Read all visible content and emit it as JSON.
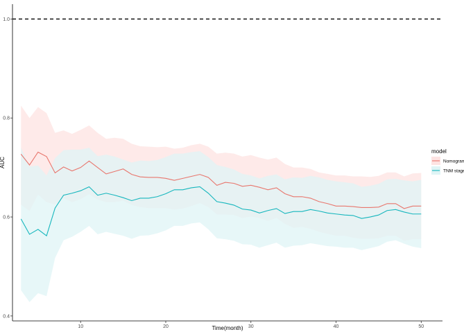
{
  "chart_data": {
    "type": "line",
    "xlabel": "Time(month)",
    "ylabel": "AUC",
    "xlim": [
      2,
      52.5
    ],
    "ylim": [
      0.39,
      1.03
    ],
    "xticks": [
      10,
      20,
      30,
      40,
      50
    ],
    "yticks": [
      0.4,
      0.6,
      0.8,
      1.0
    ],
    "ytick_labels": [
      "0.4",
      "0.6",
      "0.8",
      "1.0"
    ],
    "grid": false,
    "reference_line": {
      "y": 1.0,
      "style": "dashed",
      "color": "#000000"
    },
    "legend": {
      "title": "model",
      "position": "right"
    },
    "x": [
      3,
      4,
      5,
      6,
      7,
      8,
      9,
      10,
      11,
      12,
      13,
      14,
      15,
      16,
      17,
      18,
      19,
      20,
      21,
      22,
      23,
      24,
      25,
      26,
      27,
      28,
      29,
      30,
      31,
      32,
      33,
      34,
      35,
      36,
      37,
      38,
      39,
      40,
      41,
      42,
      43,
      44,
      45,
      46,
      47,
      48,
      49,
      50
    ],
    "series": [
      {
        "name": "Nomogram",
        "color": "#e8766d",
        "fill": "#fde3e2",
        "values": [
          0.727,
          0.705,
          0.731,
          0.722,
          0.689,
          0.701,
          0.693,
          0.7,
          0.713,
          0.7,
          0.687,
          0.692,
          0.697,
          0.686,
          0.681,
          0.68,
          0.68,
          0.678,
          0.674,
          0.678,
          0.682,
          0.686,
          0.68,
          0.664,
          0.67,
          0.668,
          0.662,
          0.664,
          0.66,
          0.655,
          0.659,
          0.647,
          0.641,
          0.641,
          0.638,
          0.631,
          0.627,
          0.622,
          0.622,
          0.621,
          0.619,
          0.619,
          0.62,
          0.627,
          0.627,
          0.617,
          0.622,
          0.622
        ],
        "lower": [
          0.625,
          0.612,
          0.645,
          0.63,
          0.625,
          0.638,
          0.63,
          0.636,
          0.646,
          0.635,
          0.63,
          0.63,
          0.633,
          0.624,
          0.62,
          0.618,
          0.618,
          0.618,
          0.615,
          0.617,
          0.622,
          0.628,
          0.62,
          0.605,
          0.605,
          0.604,
          0.598,
          0.601,
          0.598,
          0.592,
          0.598,
          0.586,
          0.578,
          0.58,
          0.576,
          0.57,
          0.566,
          0.562,
          0.562,
          0.558,
          0.556,
          0.556,
          0.557,
          0.562,
          0.562,
          0.552,
          0.555,
          0.555
        ],
        "upper": [
          0.825,
          0.8,
          0.822,
          0.81,
          0.77,
          0.775,
          0.768,
          0.776,
          0.785,
          0.77,
          0.758,
          0.76,
          0.758,
          0.748,
          0.743,
          0.742,
          0.741,
          0.742,
          0.738,
          0.74,
          0.745,
          0.748,
          0.742,
          0.728,
          0.73,
          0.728,
          0.722,
          0.725,
          0.72,
          0.716,
          0.72,
          0.707,
          0.7,
          0.7,
          0.697,
          0.69,
          0.687,
          0.684,
          0.684,
          0.682,
          0.682,
          0.681,
          0.683,
          0.69,
          0.69,
          0.682,
          0.688,
          0.689
        ]
      },
      {
        "name": "TNM stage",
        "color": "#15b6bd",
        "fill": "#dff4f5",
        "values": [
          0.596,
          0.565,
          0.575,
          0.562,
          0.618,
          0.644,
          0.648,
          0.653,
          0.661,
          0.644,
          0.648,
          0.644,
          0.639,
          0.633,
          0.638,
          0.638,
          0.641,
          0.647,
          0.655,
          0.655,
          0.659,
          0.661,
          0.648,
          0.631,
          0.628,
          0.624,
          0.616,
          0.614,
          0.608,
          0.613,
          0.617,
          0.607,
          0.611,
          0.611,
          0.615,
          0.612,
          0.608,
          0.606,
          0.604,
          0.603,
          0.597,
          0.6,
          0.604,
          0.613,
          0.615,
          0.61,
          0.606,
          0.606
        ],
        "lower": [
          0.452,
          0.428,
          0.446,
          0.44,
          0.517,
          0.553,
          0.56,
          0.57,
          0.582,
          0.565,
          0.57,
          0.566,
          0.562,
          0.556,
          0.562,
          0.563,
          0.567,
          0.573,
          0.582,
          0.582,
          0.587,
          0.589,
          0.575,
          0.557,
          0.555,
          0.552,
          0.545,
          0.544,
          0.538,
          0.543,
          0.548,
          0.538,
          0.542,
          0.543,
          0.547,
          0.544,
          0.541,
          0.54,
          0.538,
          0.538,
          0.533,
          0.537,
          0.541,
          0.55,
          0.553,
          0.546,
          0.54,
          0.537
        ],
        "upper": [
          0.74,
          0.702,
          0.704,
          0.684,
          0.719,
          0.735,
          0.736,
          0.736,
          0.74,
          0.723,
          0.726,
          0.722,
          0.716,
          0.71,
          0.714,
          0.713,
          0.715,
          0.721,
          0.728,
          0.728,
          0.731,
          0.733,
          0.721,
          0.705,
          0.701,
          0.696,
          0.687,
          0.684,
          0.678,
          0.683,
          0.686,
          0.676,
          0.68,
          0.679,
          0.683,
          0.68,
          0.675,
          0.672,
          0.67,
          0.668,
          0.661,
          0.663,
          0.667,
          0.676,
          0.677,
          0.674,
          0.672,
          0.675
        ]
      }
    ]
  }
}
